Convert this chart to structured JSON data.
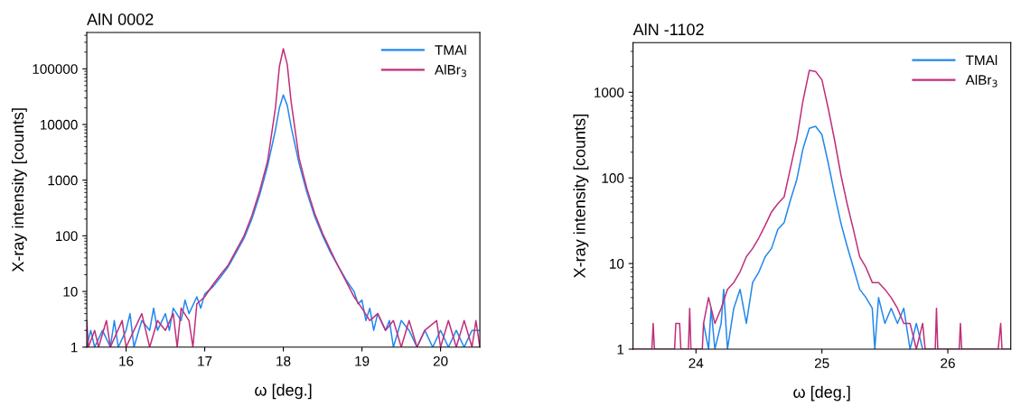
{
  "chart_data": [
    {
      "type": "line",
      "title": "AlN 0002",
      "xlabel": "ω [deg.]",
      "ylabel": "X-ray intensity [counts]",
      "log": "y",
      "legend": "top right",
      "grid": false,
      "xlim": [
        15.5,
        20.5
      ],
      "xticks": [
        16,
        17,
        18,
        19,
        20
      ],
      "ylim": [
        1,
        450000
      ],
      "yticks": [
        1,
        10,
        100,
        1000,
        10000,
        100000
      ],
      "series": [
        {
          "name": "TMAl",
          "color": "#2288ee",
          "x": [
            15.5,
            15.55,
            15.6,
            15.7,
            15.8,
            15.85,
            15.9,
            16.0,
            16.05,
            16.1,
            16.2,
            16.3,
            16.35,
            16.4,
            16.5,
            16.55,
            16.6,
            16.7,
            16.75,
            16.8,
            16.9,
            16.95,
            17.0,
            17.1,
            17.2,
            17.3,
            17.4,
            17.5,
            17.6,
            17.7,
            17.8,
            17.9,
            17.95,
            18.0,
            18.05,
            18.1,
            18.2,
            18.3,
            18.4,
            18.5,
            18.6,
            18.7,
            18.8,
            18.9,
            18.95,
            19.0,
            19.05,
            19.1,
            19.15,
            19.2,
            19.3,
            19.35,
            19.4,
            19.5,
            19.6,
            19.7,
            19.8,
            19.9,
            20.0,
            20.1,
            20.2,
            20.3,
            20.4,
            20.5
          ],
          "values": [
            1,
            2,
            1,
            2,
            1,
            3,
            1,
            2,
            4,
            1,
            3,
            2,
            5,
            2,
            4,
            2,
            5,
            3,
            7,
            4,
            8,
            5,
            9,
            12,
            18,
            28,
            50,
            90,
            200,
            550,
            1800,
            8000,
            20000,
            34000,
            22000,
            9000,
            2000,
            600,
            220,
            100,
            50,
            28,
            16,
            10,
            6,
            7,
            3,
            5,
            2,
            4,
            2,
            3,
            1,
            3,
            2,
            1,
            2,
            1,
            2,
            1,
            2,
            1,
            2,
            2
          ]
        },
        {
          "name": "AlBr$_{3}$",
          "color": "#c0307a",
          "x": [
            15.5,
            15.52,
            15.6,
            15.65,
            15.75,
            15.8,
            15.95,
            16.0,
            16.1,
            16.2,
            16.3,
            16.4,
            16.5,
            16.6,
            16.65,
            16.7,
            16.8,
            16.85,
            16.9,
            17.0,
            17.1,
            17.2,
            17.3,
            17.4,
            17.5,
            17.6,
            17.7,
            17.8,
            17.9,
            17.95,
            18.0,
            18.05,
            18.1,
            18.2,
            18.3,
            18.4,
            18.5,
            18.6,
            18.7,
            18.8,
            18.9,
            19.0,
            19.1,
            19.2,
            19.3,
            19.4,
            19.5,
            19.6,
            19.7,
            19.8,
            19.95,
            20.0,
            20.1,
            20.2,
            20.3,
            20.4,
            20.45,
            20.5
          ],
          "values": [
            3,
            1,
            2,
            1,
            3,
            1,
            3,
            1,
            2,
            4,
            1,
            3,
            2,
            4,
            1,
            5,
            3,
            1,
            6,
            8,
            13,
            20,
            30,
            55,
            100,
            230,
            650,
            2200,
            20000,
            110000,
            230000,
            120000,
            25000,
            2500,
            700,
            250,
            110,
            55,
            28,
            15,
            8,
            5,
            3,
            4,
            2,
            3,
            1,
            3,
            1,
            2,
            3,
            1,
            3,
            1,
            3,
            1,
            3,
            1
          ]
        }
      ]
    },
    {
      "type": "line",
      "title": "AlN -1102",
      "xlabel": "ω [deg.]",
      "ylabel": "X-ray intensity [counts]",
      "log": "y",
      "legend": "top right",
      "grid": false,
      "xlim": [
        23.5,
        26.5
      ],
      "xticks": [
        24,
        25,
        26
      ],
      "ylim": [
        1,
        3800
      ],
      "yticks": [
        1,
        10,
        100,
        1000
      ],
      "series": [
        {
          "name": "TMAl",
          "color": "#2288ee",
          "x": [
            24.06,
            24.1,
            24.12,
            24.15,
            24.2,
            24.22,
            24.25,
            24.3,
            24.35,
            24.4,
            24.45,
            24.5,
            24.55,
            24.6,
            24.65,
            24.7,
            24.75,
            24.8,
            24.85,
            24.9,
            24.95,
            25.0,
            25.05,
            25.1,
            25.15,
            25.2,
            25.25,
            25.3,
            25.35,
            25.4,
            25.42,
            25.45,
            25.5,
            25.55,
            25.6,
            25.65,
            25.7,
            25.75,
            25.8
          ],
          "values": [
            2,
            1,
            3,
            1,
            2,
            5,
            1,
            3,
            5,
            2,
            6,
            8,
            12,
            15,
            25,
            30,
            55,
            95,
            220,
            380,
            400,
            320,
            150,
            65,
            30,
            16,
            9,
            5,
            4,
            3,
            1,
            4,
            2,
            3,
            2,
            3,
            1,
            2,
            1
          ]
        },
        {
          "name": "AlBr$_{3}$",
          "color": "#c0307a",
          "x": [
            23.5,
            23.65,
            23.66,
            23.67,
            23.83,
            23.84,
            23.87,
            23.88,
            23.94,
            23.95,
            23.96,
            24.05,
            24.06,
            24.1,
            24.15,
            24.2,
            24.25,
            24.3,
            24.35,
            24.4,
            24.45,
            24.5,
            24.55,
            24.6,
            24.65,
            24.7,
            24.75,
            24.8,
            24.85,
            24.9,
            24.95,
            25.0,
            25.05,
            25.1,
            25.15,
            25.2,
            25.25,
            25.3,
            25.35,
            25.4,
            25.45,
            25.5,
            25.55,
            25.6,
            25.65,
            25.7,
            25.75,
            25.8,
            25.82,
            25.9,
            25.91,
            25.92,
            26.09,
            26.1,
            26.11,
            26.4,
            26.42,
            26.43,
            26.5
          ],
          "values": [
            1,
            1,
            2,
            1,
            1,
            2,
            2,
            1,
            1,
            3,
            1,
            1,
            2,
            4,
            2,
            3,
            5,
            6,
            8,
            12,
            15,
            20,
            28,
            40,
            50,
            60,
            130,
            280,
            800,
            1800,
            1750,
            1400,
            650,
            280,
            110,
            50,
            25,
            12,
            9,
            6,
            6,
            5,
            4,
            3,
            2,
            2,
            1,
            2,
            1,
            1,
            3,
            1,
            1,
            2,
            1,
            1,
            2,
            1,
            1
          ]
        }
      ]
    }
  ]
}
